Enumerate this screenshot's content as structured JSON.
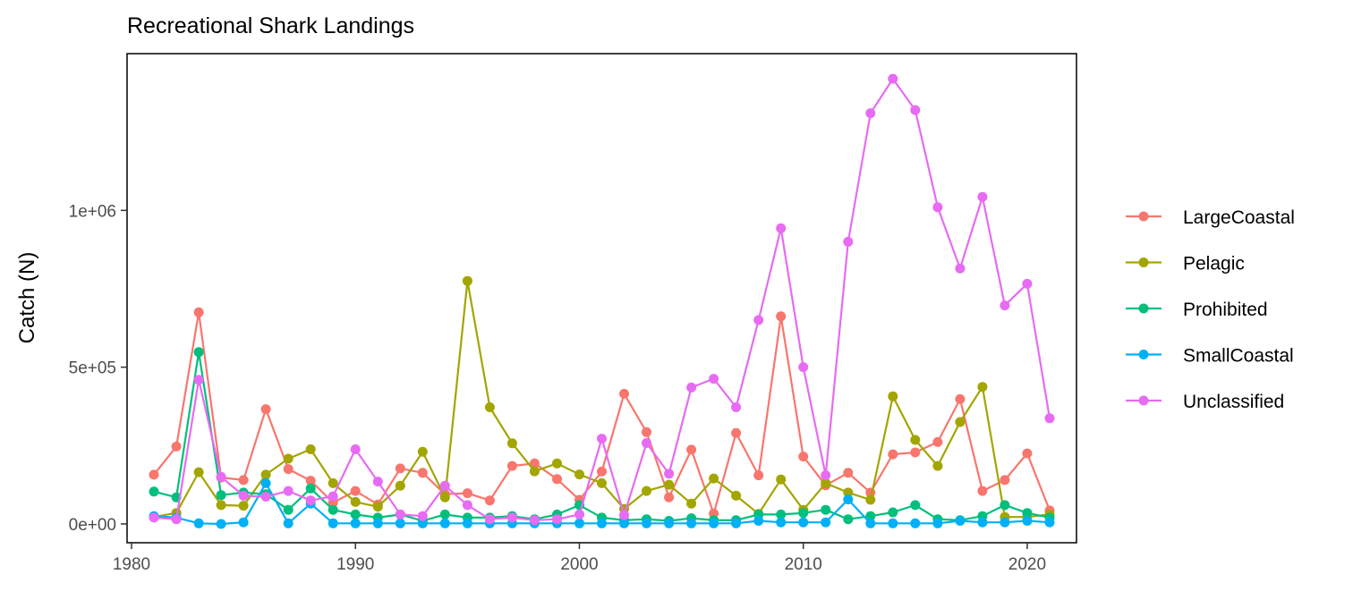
{
  "chart_data": {
    "type": "line",
    "title": "Recreational Shark Landings",
    "xlabel": "",
    "ylabel": "Catch (N)",
    "xlim": [
      1979.8,
      2022.2
    ],
    "ylim": [
      -60000,
      1500000
    ],
    "x_ticks": [
      1980,
      1990,
      2000,
      2010,
      2020
    ],
    "x_tick_labels": [
      "1980",
      "1990",
      "2000",
      "2010",
      "2020"
    ],
    "y_ticks": [
      0,
      500000,
      1000000
    ],
    "y_tick_labels": [
      "0e+00",
      "5e+05",
      "1e+06"
    ],
    "grid": false,
    "legend_position": "right",
    "x": [
      1981,
      1982,
      1983,
      1984,
      1985,
      1986,
      1987,
      1988,
      1989,
      1990,
      1991,
      1992,
      1993,
      1994,
      1995,
      1996,
      1997,
      1998,
      1999,
      2000,
      2001,
      2002,
      2003,
      2004,
      2005,
      2006,
      2007,
      2008,
      2009,
      2010,
      2011,
      2012,
      2013,
      2014,
      2015,
      2016,
      2017,
      2018,
      2019,
      2020,
      2021
    ],
    "series": [
      {
        "name": "LargeCoastal",
        "color": "#F8766D",
        "values": [
          157000,
          247000,
          675000,
          148000,
          140000,
          366000,
          175000,
          138000,
          68000,
          105000,
          62000,
          177000,
          163000,
          95000,
          98000,
          75000,
          185000,
          193000,
          143000,
          77000,
          167000,
          415000,
          293000,
          85000,
          237000,
          33000,
          290000,
          155000,
          662000,
          215000,
          123000,
          163000,
          100000,
          222000,
          228000,
          261000,
          398000,
          105000,
          140000,
          225000,
          43000
        ]
      },
      {
        "name": "Pelagic",
        "color": "#A3A500",
        "values": [
          22000,
          35000,
          165000,
          60000,
          58000,
          157000,
          208000,
          238000,
          130000,
          70000,
          55000,
          122000,
          230000,
          85000,
          775000,
          372000,
          257000,
          168000,
          193000,
          158000,
          130000,
          48000,
          105000,
          125000,
          65000,
          145000,
          90000,
          32000,
          142000,
          45000,
          130000,
          100000,
          77000,
          407000,
          268000,
          185000,
          325000,
          437000,
          22000,
          22000,
          30000
        ]
      },
      {
        "name": "Prohibited",
        "color": "#00BF7D",
        "values": [
          103000,
          85000,
          548000,
          92000,
          100000,
          95000,
          45000,
          113000,
          45000,
          30000,
          20000,
          30000,
          10000,
          30000,
          20000,
          20000,
          25000,
          15000,
          30000,
          60000,
          20000,
          12000,
          15000,
          10000,
          18000,
          12000,
          12000,
          30000,
          30000,
          35000,
          45000,
          15000,
          25000,
          37000,
          60000,
          15000,
          12000,
          25000,
          60000,
          35000,
          20000
        ]
      },
      {
        "name": "SmallCoastal",
        "color": "#00B0F6",
        "values": [
          25000,
          20000,
          2000,
          0,
          5000,
          130000,
          2000,
          65000,
          2000,
          2000,
          2000,
          2000,
          2000,
          2000,
          2000,
          2000,
          2000,
          2000,
          2000,
          2000,
          2000,
          2000,
          2000,
          2000,
          2000,
          2000,
          2000,
          10000,
          5000,
          5000,
          5000,
          78000,
          2000,
          2000,
          2000,
          2000,
          10000,
          5000,
          5000,
          10000,
          5000
        ]
      },
      {
        "name": "Unclassified",
        "color": "#E76BF3",
        "values": [
          20000,
          15000,
          460000,
          150000,
          90000,
          87000,
          105000,
          75000,
          88000,
          238000,
          135000,
          30000,
          25000,
          122000,
          60000,
          15000,
          20000,
          12000,
          15000,
          30000,
          272000,
          28000,
          258000,
          160000,
          435000,
          463000,
          372000,
          650000,
          943000,
          500000,
          155000,
          900000,
          1310000,
          1420000,
          1320000,
          1010000,
          815000,
          1043000,
          697000,
          766000,
          337000
        ]
      }
    ]
  }
}
